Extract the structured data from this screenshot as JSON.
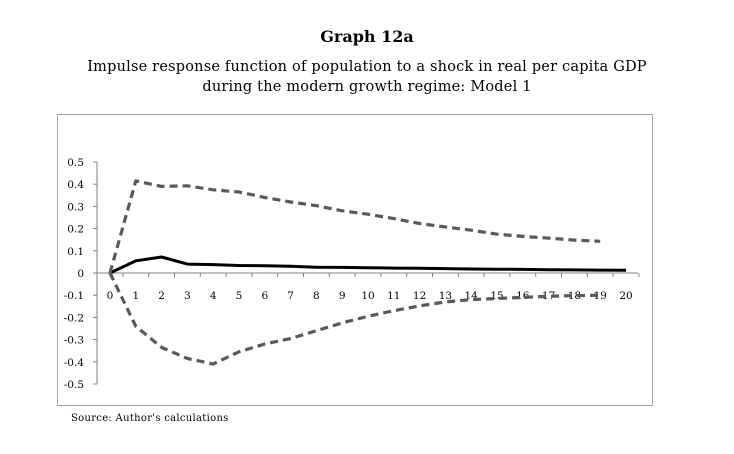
{
  "header": {
    "graph_label": "Graph 12a",
    "title_line1": "Impulse response function of population to a shock in real per capita GDP",
    "title_line2": "during the modern growth regime: Model 1"
  },
  "footer": {
    "source": "Source: Author's calculations"
  },
  "chart_data": {
    "type": "line",
    "title": "Impulse response function of population to a shock in real per capita GDP during the modern growth regime: Model 1",
    "xlabel": "",
    "ylabel": "",
    "x": [
      0,
      1,
      2,
      3,
      4,
      5,
      6,
      7,
      8,
      9,
      10,
      11,
      12,
      13,
      14,
      15,
      16,
      17,
      18,
      19,
      20
    ],
    "xtick_labels": [
      "0",
      "1",
      "2",
      "3",
      "4",
      "5",
      "6",
      "7",
      "8",
      "9",
      "10",
      "11",
      "12",
      "13",
      "14",
      "15",
      "16",
      "17",
      "18",
      "19",
      "20"
    ],
    "ylim": [
      -0.5,
      0.5
    ],
    "yticks": [
      0.5,
      0.4,
      0.3,
      0.2,
      0.1,
      0,
      -0.1,
      -0.2,
      -0.3,
      -0.4,
      -0.5
    ],
    "ytick_labels": [
      "0.5",
      "0.4",
      "0.3",
      "0.2",
      "0.1",
      "0",
      "-0.1",
      "-0.2",
      "-0.3",
      "-0.4",
      "-0.5"
    ],
    "grid": false,
    "legend": "none",
    "series": [
      {
        "style": "solid",
        "color": "#000000",
        "x": [
          0,
          1,
          2,
          3,
          4,
          5,
          6,
          7,
          8,
          9,
          10,
          11,
          12,
          13,
          14,
          15,
          16,
          17,
          18,
          19,
          20
        ],
        "values": [
          0.0,
          0.055,
          0.072,
          0.04,
          0.038,
          0.034,
          0.033,
          0.03,
          0.026,
          0.025,
          0.024,
          0.022,
          0.021,
          0.02,
          0.018,
          0.017,
          0.016,
          0.015,
          0.014,
          0.013,
          0.012
        ]
      },
      {
        "style": "dashed",
        "color": "#595959",
        "x": [
          0,
          1,
          2,
          3,
          4,
          5,
          6,
          7,
          8,
          9,
          10,
          11,
          12,
          13,
          14,
          15,
          16,
          17,
          18,
          19
        ],
        "values": [
          0.0,
          0.415,
          0.39,
          0.393,
          0.375,
          0.365,
          0.34,
          0.32,
          0.303,
          0.28,
          0.265,
          0.245,
          0.223,
          0.207,
          0.193,
          0.175,
          0.165,
          0.157,
          0.148,
          0.143
        ]
      },
      {
        "style": "dashed",
        "color": "#595959",
        "x": [
          0,
          1,
          2,
          3,
          4,
          5,
          6,
          7,
          8,
          9,
          10,
          11,
          12,
          13,
          14,
          15,
          16,
          17,
          18,
          19
        ],
        "values": [
          0.0,
          -0.24,
          -0.335,
          -0.385,
          -0.41,
          -0.355,
          -0.32,
          -0.295,
          -0.26,
          -0.225,
          -0.195,
          -0.17,
          -0.148,
          -0.13,
          -0.12,
          -0.115,
          -0.11,
          -0.105,
          -0.102,
          -0.1
        ]
      }
    ]
  }
}
